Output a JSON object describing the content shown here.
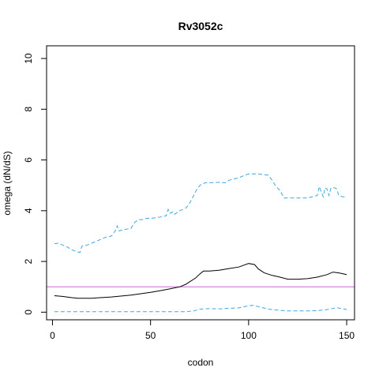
{
  "chart_data": {
    "type": "line",
    "title": "Rv3052c",
    "xlabel": "codon",
    "ylabel": "omega (dN/dS)",
    "xlim": [
      -3,
      154
    ],
    "ylim": [
      -0.3,
      10.5
    ],
    "xticks": [
      0,
      50,
      100,
      150
    ],
    "yticks": [
      0,
      2,
      4,
      6,
      8,
      10
    ],
    "grid": false,
    "legend": "none",
    "reference_line": {
      "y": 1,
      "color": "#cc66cc"
    },
    "series": [
      {
        "style": "solid",
        "color": "#000000",
        "x": [
          1,
          5,
          10,
          13,
          20,
          30,
          40,
          50,
          55,
          60,
          65,
          68,
          70,
          73,
          75,
          77,
          80,
          85,
          90,
          95,
          100,
          103,
          105,
          108,
          112,
          116,
          120,
          125,
          130,
          135,
          140,
          143,
          146,
          150
        ],
        "y": [
          0.65,
          0.62,
          0.57,
          0.55,
          0.55,
          0.6,
          0.67,
          0.78,
          0.85,
          0.92,
          1.0,
          1.1,
          1.2,
          1.35,
          1.5,
          1.62,
          1.62,
          1.65,
          1.72,
          1.78,
          1.92,
          1.88,
          1.7,
          1.55,
          1.45,
          1.38,
          1.3,
          1.3,
          1.32,
          1.38,
          1.48,
          1.58,
          1.55,
          1.48
        ]
      },
      {
        "style": "dashed",
        "color": "#3fa8e0",
        "x": [
          1,
          10,
          20,
          30,
          40,
          50,
          60,
          68,
          72,
          75,
          80,
          85,
          90,
          95,
          100,
          102,
          105,
          110,
          115,
          120,
          125,
          130,
          135,
          140,
          145,
          150
        ],
        "y": [
          0.02,
          0.02,
          0.02,
          0.02,
          0.02,
          0.02,
          0.02,
          0.02,
          0.05,
          0.12,
          0.14,
          0.13,
          0.15,
          0.17,
          0.25,
          0.27,
          0.22,
          0.12,
          0.08,
          0.05,
          0.05,
          0.05,
          0.06,
          0.1,
          0.18,
          0.1
        ]
      },
      {
        "style": "dashed",
        "color": "#3fa8e0",
        "x": [
          1,
          3,
          5,
          8,
          10,
          12,
          14,
          15,
          18,
          21,
          24,
          27,
          30,
          32,
          33,
          34,
          36,
          40,
          42,
          44,
          46,
          48,
          50,
          55,
          58,
          59,
          60,
          61,
          62,
          65,
          68,
          70,
          72,
          74,
          76,
          78,
          80,
          85,
          88,
          90,
          95,
          98,
          100,
          102,
          105,
          110,
          112,
          114,
          116,
          118,
          120,
          125,
          130,
          135,
          136,
          137,
          138,
          139,
          140,
          141,
          142,
          144,
          145,
          146,
          148,
          150
        ],
        "y": [
          2.7,
          2.72,
          2.65,
          2.55,
          2.45,
          2.4,
          2.35,
          2.6,
          2.65,
          2.75,
          2.85,
          2.95,
          3.0,
          3.2,
          3.4,
          3.2,
          3.25,
          3.3,
          3.55,
          3.65,
          3.65,
          3.7,
          3.7,
          3.75,
          3.8,
          4.05,
          3.9,
          3.95,
          3.85,
          4.0,
          4.1,
          4.3,
          4.6,
          4.9,
          5.05,
          5.1,
          5.1,
          5.12,
          5.1,
          5.2,
          5.3,
          5.4,
          5.45,
          5.45,
          5.45,
          5.4,
          5.2,
          4.95,
          4.8,
          4.5,
          4.5,
          4.5,
          4.5,
          4.6,
          4.95,
          4.75,
          4.55,
          4.9,
          4.85,
          4.6,
          4.9,
          4.9,
          4.85,
          4.6,
          4.55,
          4.55
        ]
      }
    ]
  }
}
